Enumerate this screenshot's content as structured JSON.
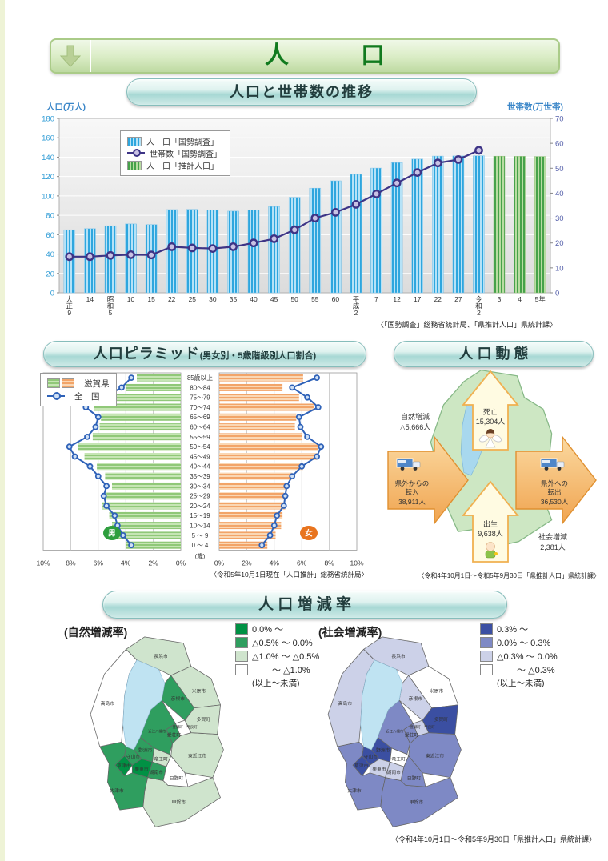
{
  "page": {
    "title": "人　　　口"
  },
  "trend": {
    "section_title": "人口と世帯数の推移",
    "source": "〈「国勢調査」総務省統計局、「県推計人口」県統計課〉"
  },
  "pyramid": {
    "section_title": "人口ピラミッド",
    "section_subtitle": "(男女別・5歳階級別人口割合)",
    "legend_pref": "滋賀県",
    "legend_national": "全　国",
    "male_badge": "男",
    "female_badge": "女",
    "age_unit": "(歳)",
    "source": "〈令和5年10月1日現在「人口推計」総務省統計局〉"
  },
  "dynamics": {
    "section_title": "人 口 動 態",
    "death_label": "死亡",
    "death_value": "15,304人",
    "natural_label": "自然増減",
    "natural_value": "△5,666人",
    "in_label": [
      "県外からの",
      "転入"
    ],
    "in_value": "38,911人",
    "out_label": [
      "県外への",
      "転出"
    ],
    "out_value": "36,530人",
    "birth_label": "出生",
    "birth_value": "9,638人",
    "social_label": "社会増減",
    "social_value": "2,381人",
    "source": "〈令和4年10月1日～令和5年9月30日「県推計人口」県統計課〉"
  },
  "rates": {
    "section_title": "人 口 増 減 率",
    "source": "〈令和4年10月1日～令和5年9月30日「県推計人口」県統計課〉"
  },
  "chart_data": [
    {
      "id": "population-household-trend",
      "type": "bar+line",
      "title": "人口と世帯数の推移",
      "categories": [
        "大正9",
        "14",
        "昭和5",
        "10",
        "15",
        "22",
        "25",
        "30",
        "35",
        "40",
        "45",
        "50",
        "55",
        "60",
        "平成2",
        "7",
        "12",
        "17",
        "22",
        "27",
        "令和2",
        "3",
        "4",
        "5年"
      ],
      "left_axis": {
        "label": "人口(万人)",
        "min": 0,
        "max": 180,
        "step": 20
      },
      "right_axis": {
        "label": "世帯数(万世帯)",
        "min": 0,
        "max": 70,
        "step": 10
      },
      "series": [
        {
          "name": "人　口「国勢調査」",
          "type": "bar",
          "key": "blue",
          "axis": "left",
          "values": [
            65.1,
            66.2,
            69.2,
            71.1,
            70.4,
            85.9,
            86.1,
            85.4,
            84.3,
            85.3,
            89.0,
            98.6,
            108.0,
            115.6,
            122.2,
            128.7,
            134.3,
            138.0,
            141.1,
            141.3,
            141.4,
            null,
            null,
            null
          ]
        },
        {
          "name": "人　口「推計人口」",
          "type": "bar",
          "key": "green",
          "axis": "left",
          "values": [
            null,
            null,
            null,
            null,
            null,
            null,
            null,
            null,
            null,
            null,
            null,
            null,
            null,
            null,
            null,
            null,
            null,
            null,
            null,
            null,
            null,
            141.0,
            140.9,
            140.7
          ]
        },
        {
          "name": "世帯数「国勢調査」",
          "type": "line",
          "key": "households",
          "axis": "right",
          "values": [
            14.5,
            14.5,
            15.0,
            15.3,
            15.2,
            18.5,
            18.0,
            17.8,
            18.5,
            20.0,
            21.7,
            25.3,
            30.0,
            32.3,
            35.5,
            39.7,
            44.1,
            48.3,
            52.1,
            53.5,
            57.2,
            null,
            null,
            null
          ]
        }
      ]
    },
    {
      "id": "population-pyramid",
      "type": "population-pyramid",
      "title": "人口ピラミッド(男女別・5歳階級別人口割合)",
      "axis_max_percent": 10,
      "axis_tick_step": 2,
      "age_groups_top_down": [
        "85歳以上",
        "80～84",
        "75～79",
        "70～74",
        "65～69",
        "60～64",
        "55～59",
        "50～54",
        "45～49",
        "40～44",
        "35～39",
        "30～34",
        "25～29",
        "20～24",
        "15～19",
        "10～14",
        "5 ～ 9",
        "0 ～ 4"
      ],
      "series": [
        {
          "name": "滋賀県 男",
          "values": [
            3.2,
            4.0,
            5.1,
            6.3,
            5.8,
            5.9,
            6.4,
            7.5,
            7.0,
            6.1,
            5.5,
            5.0,
            5.4,
            5.7,
            5.2,
            5.0,
            4.6,
            4.0
          ]
        },
        {
          "name": "滋賀県 女",
          "values": [
            6.1,
            4.6,
            5.8,
            6.9,
            5.6,
            5.5,
            6.0,
            7.2,
            7.1,
            6.1,
            5.3,
            4.9,
            4.7,
            4.8,
            4.6,
            4.5,
            4.1,
            3.5
          ]
        },
        {
          "name": "全国 男",
          "values": [
            3.6,
            4.3,
            5.6,
            6.9,
            6.0,
            6.2,
            6.8,
            8.1,
            7.7,
            6.6,
            6.0,
            5.4,
            5.6,
            5.4,
            4.8,
            4.6,
            4.2,
            3.6
          ]
        },
        {
          "name": "全国 女",
          "values": [
            7.1,
            5.3,
            6.4,
            7.2,
            5.8,
            5.9,
            6.4,
            7.4,
            7.1,
            6.0,
            5.3,
            4.9,
            4.8,
            4.7,
            4.2,
            4.0,
            3.7,
            3.1
          ]
        }
      ]
    },
    {
      "id": "population-change-rate-maps",
      "type": "choropleth",
      "title": "人 口 増 減 率",
      "maps": [
        {
          "id": "natural",
          "title": "(自然増減率)",
          "note": "(以上～未満)",
          "legend": [
            "0.0% ～",
            "△0.5% ～ 0.0%",
            "△1.0% ～ △0.5%",
            "　　 ～ △1.0%"
          ],
          "palette": [
            "#009144",
            "#2f9e5f",
            "#cfe4cd",
            "#ffffff"
          ]
        },
        {
          "id": "social",
          "title": "(社会増減率)",
          "note": "(以上～未満)",
          "legend": [
            "0.3% ～",
            "0.0% ～ 0.3%",
            "△0.3% ～ 0.0%",
            "　　 ～ △0.3%"
          ],
          "palette": [
            "#3b4fa2",
            "#7e89c5",
            "#ccd1e8",
            "#ffffff"
          ]
        }
      ],
      "municipalities": [
        {
          "key": "otsu",
          "name": "大津市",
          "natural": 1,
          "social": 1
        },
        {
          "key": "kusatsu",
          "name": "草津市",
          "natural": 0,
          "social": 0
        },
        {
          "key": "ritto",
          "name": "栗東市",
          "natural": 0,
          "social": 2
        },
        {
          "key": "moriyama",
          "name": "守山市",
          "natural": 1,
          "social": 0
        },
        {
          "key": "yasu",
          "name": "野洲市",
          "natural": 1,
          "social": 0
        },
        {
          "key": "omihachiman",
          "name": "近江八幡市",
          "natural": 1,
          "social": 1
        },
        {
          "key": "hikone",
          "name": "彦根市",
          "natural": 1,
          "social": 2
        },
        {
          "key": "aisho",
          "name": "愛荘町",
          "natural": 1,
          "social": 1
        },
        {
          "key": "konan",
          "name": "湖南市",
          "natural": 1,
          "social": 2
        },
        {
          "key": "nagahama",
          "name": "長浜市",
          "natural": 2,
          "social": 2
        },
        {
          "key": "maibara",
          "name": "米原市",
          "natural": 2,
          "social": 3
        },
        {
          "key": "taga",
          "name": "多賀町",
          "natural": 2,
          "social": 0
        },
        {
          "key": "higashiomi",
          "name": "東近江市",
          "natural": 2,
          "social": 1
        },
        {
          "key": "ryuo",
          "name": "竜王町",
          "natural": 2,
          "social": 3
        },
        {
          "key": "koka",
          "name": "甲賀市",
          "natural": 2,
          "social": 1
        },
        {
          "key": "takashima",
          "name": "高島市",
          "natural": 3,
          "social": 2
        },
        {
          "key": "toyosato",
          "name": "豊郷町・甲良町",
          "natural": 3,
          "social": 2
        },
        {
          "key": "hino",
          "name": "日野町",
          "natural": 3,
          "social": 1
        }
      ]
    }
  ]
}
